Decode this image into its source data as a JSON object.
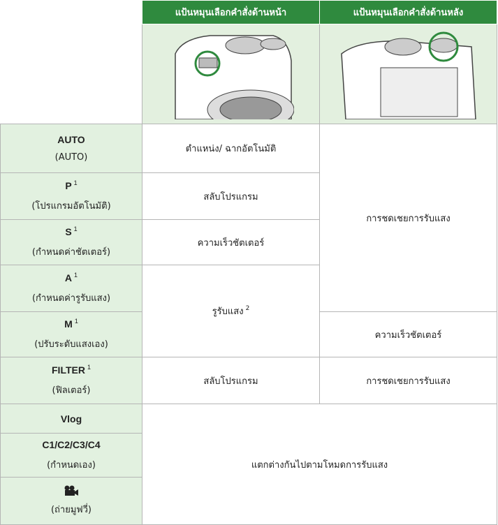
{
  "table": {
    "columns": [
      "แป้นหมุนเลือกคำสั่งด้านหน้า",
      "แป้นหมุนเลือกคำสั่งด้านหลัง"
    ],
    "rows": [
      {
        "mode": "AUTO",
        "note": "(AUTO)",
        "front": "ตำแหน่ง/ ฉากอัตโนมัติ",
        "rear": "การชดเชยการรับแสง"
      },
      {
        "mode": "P",
        "sup": "1",
        "note": "(โปรแกรมอัตโนมัติ)",
        "front": "สลับโปรแกรม"
      },
      {
        "mode": "S",
        "sup": "1",
        "note": "(กำหนดค่าชัตเตอร์)",
        "front": "ความเร็วชัตเตอร์"
      },
      {
        "mode": "A",
        "sup": "1",
        "note": "(กำหนดค่ารูรับแสง)",
        "front": "รูรับแสง",
        "front_sup": "2"
      },
      {
        "mode": "M",
        "sup": "1",
        "note": "(ปรับระดับแสงเอง)",
        "rear": "ความเร็วชัตเตอร์"
      },
      {
        "mode": "FILTER",
        "sup": "1",
        "note": "(ฟิลเตอร์)",
        "front": "สลับโปรแกรม",
        "rear": "การชดเชยการรับแสง"
      },
      {
        "mode": "Vlog",
        "both": "แตกต่างกันไปตามโหมดการรับแสง"
      },
      {
        "mode": "C1/C2/C3/C4",
        "note": "(กำหนดเอง)"
      },
      {
        "note": "(ถ่ายมูฟวี่)"
      }
    ]
  }
}
